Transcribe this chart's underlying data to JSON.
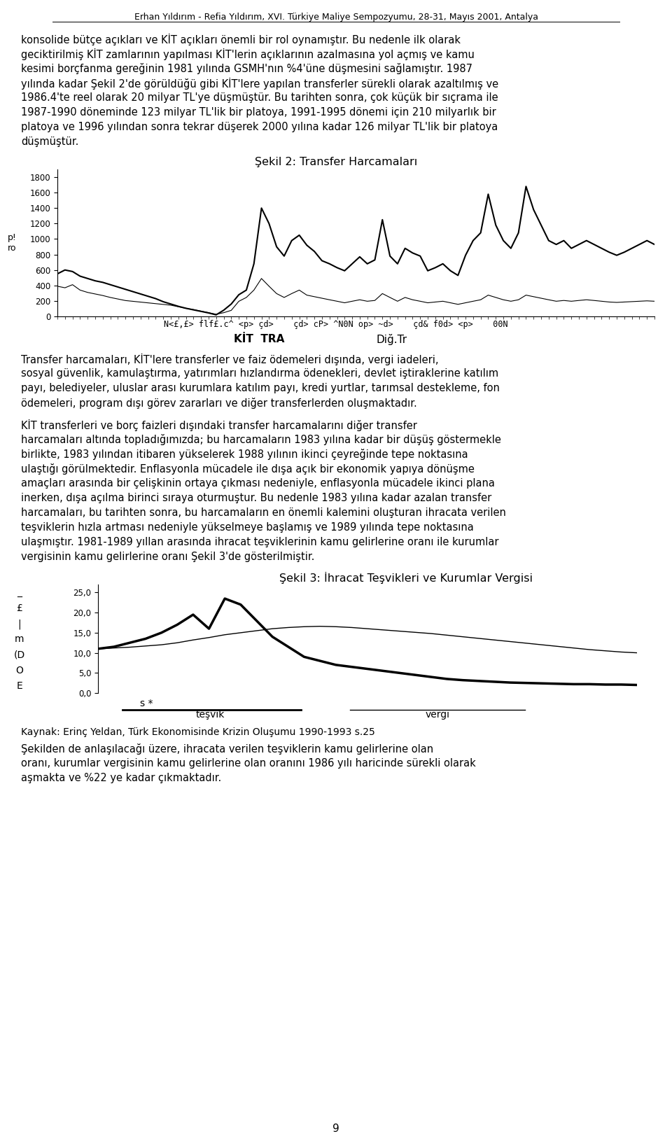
{
  "bg": "#ffffff",
  "header": "Erhan Yıldırım - Refia Yıldırım, XVI. Türkiye Maliye Sempozyumu, 28-31, Mayıs 2001, Antalya",
  "para1_lines": [
    "konsolide bütçe açıkları ve KİT açıkları önemli bir rol oynamıştır. Bu nedenle ilk olarak",
    "geciktirilmiş KİT zamlarının yapılması KİT'lerin açıklarının azalmasına yol açmış ve kamu",
    "kesimi borçfanma gereğinin 1981 yılında GSMH'nın %4'üne düşmesini sağlamıştır. 1987",
    "yılında kadar Şekil 2'de görüldüğü gibi KİT'lere yapılan transferler sürekli olarak azaltılmış ve",
    "1986.4'te reel olarak 20 milyar TL'ye düşmüştür. Bu tarihten sonra, çok küçük bir sıçrama ile",
    "1987-1990 döneminde 123 milyar TL'lik bir platoya, 1991-1995 dönemi için 210 milyarlık bir",
    "platoya ve 1996 yılından sonra tekrar düşerek 2000 yılına kadar 126 milyar TL'lik bir platoya",
    "düşmüştür."
  ],
  "chart1_title": "Şekil 2: Transfer Harcamaları",
  "chart1_yticks": [
    0,
    200,
    400,
    600,
    800,
    1000,
    1200,
    1400,
    1600,
    1800
  ],
  "chart1_xlabel": "N<£,£> flf£.c^ <p> çd>    çd> cP> ^N0N op> ~d>    çd& f0d> <p>    00N",
  "chart1_legend": [
    "KİT  TRA",
    "Diğ.Tr"
  ],
  "para2_lines": [
    "Transfer harcamaları, KİT'lere transferler ve faiz ödemeleri dışında, vergi iadeleri,",
    "sosyal güvenlik, kamulaştırma, yatırımları hızlandırma ödenekleri, devlet iştiraklerine katılım",
    "payı, belediyeler, uluslar arası kurumlara katılım payı, kredi yurtlar, tarımsal destekleme, fon",
    "ödemeleri, program dışı görev zararları ve diğer transferlerden oluşmaktadır."
  ],
  "para3_lines": [
    "KİT transferleri ve borç faizleri dışındaki transfer harcamalarını diğer transfer",
    "harcamaları altında topladığımızda; bu harcamaların 1983 yılına kadar bir düşüş göstermekle",
    "birlikte, 1983 yılından itibaren yükselerek 1988 yılının ikinci çeyreğinde tepe noktasına",
    "ulaştığı görülmektedir. Enflasyonla mücadele ile dışa açık bir ekonomik yapıya dönüşme",
    "amaçları arasında bir çelişkinin ortaya çıkması nedeniyle, enflasyonla mücadele ikinci plana",
    "inerken, dışa açılma birinci sıraya oturmuştur. Bu nedenle 1983 yılına kadar azalan transfer",
    "harcamaları, bu tarihten sonra, bu harcamaların en önemli kalemini oluşturan ihracata verilen",
    "teşviklerin hızla artması nedeniyle yükselmeye başlamış ve 1989 yılında tepe noktasına",
    "ulaşmıştır. 1981-1989 yıllan arasında ihracat teşviklerinin kamu gelirlerine oranı ile kurumlar",
    "vergisinin kamu gelirlerine oranı Şekil 3'de gösterilmiştir."
  ],
  "chart2_title": "Şekil 3: İhracat Teşvikleri ve Kurumlar Vergisi",
  "chart2_yticks": [
    0.0,
    5.0,
    10.0,
    15.0,
    20.0,
    25.0
  ],
  "chart2_ytick_labels": [
    "0,0",
    "5,0",
    "10,0",
    "15,0",
    "20,0",
    "25,0"
  ],
  "chart2_ylabel_labels": [
    "_",
    "£",
    "|",
    "m",
    "(D",
    "O",
    "E"
  ],
  "chart2_legend": [
    "teşvik",
    "vergi"
  ],
  "footer_source": "Kaynak: Erinç Yeldan, Türk Ekonomisinde Krizin Oluşumu 1990-1993 s.25",
  "footer_para_lines": [
    "Şekilden de anlaşılacağı üzere, ihracata verilen teşviklerin kamu gelirlerine olan",
    "oranı, kurumlar vergisinin kamu gelirlerine olan oranını 1986 yılı haricinde sürekli olarak",
    "aşmakta ve %22 ye kadar çıkmaktadır."
  ],
  "page_num": "9"
}
